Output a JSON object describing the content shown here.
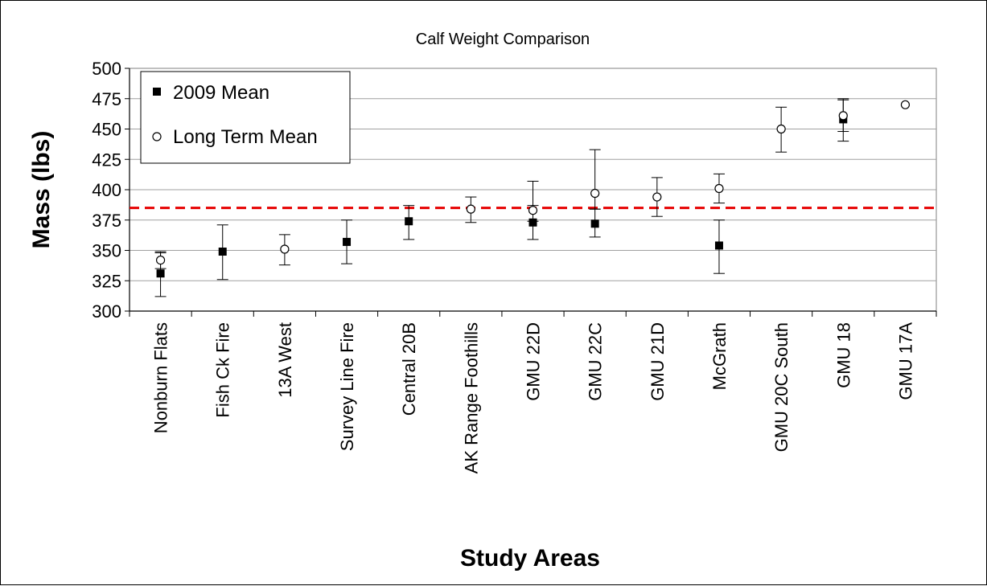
{
  "chart_data": {
    "type": "scatter",
    "title": "Calf Weight Comparison",
    "xlabel": "Study Areas",
    "ylabel": "Mass (lbs)",
    "ylim": [
      300,
      500
    ],
    "yticks": [
      300,
      325,
      350,
      375,
      400,
      425,
      450,
      475,
      500
    ],
    "grid": "horizontal",
    "legend_position": "top-left",
    "categories": [
      "Nonburn Flats",
      "Fish Ck Fire",
      "13A West",
      "Survey Line Fire",
      "Central 20B",
      "AK Range Foothills",
      "GMU 22D",
      "GMU 22C",
      "GMU 21D",
      "McGrath",
      "GMU 20C South",
      "GMU 18",
      "GMU 17A"
    ],
    "series": [
      {
        "name": "2009 Mean",
        "marker": "filled-square",
        "color": "#000000",
        "values": [
          331,
          349,
          null,
          357,
          374,
          null,
          373,
          372,
          null,
          354,
          null,
          458,
          null
        ],
        "error_low": [
          312,
          326,
          null,
          339,
          359,
          null,
          359,
          361,
          null,
          331,
          null,
          440,
          null
        ],
        "error_high": [
          349,
          371,
          null,
          375,
          387,
          null,
          387,
          384,
          null,
          375,
          null,
          474,
          null
        ]
      },
      {
        "name": "Long Term Mean",
        "marker": "open-circle",
        "color": "#000000",
        "values": [
          342,
          null,
          351,
          null,
          null,
          384,
          383,
          397,
          394,
          401,
          450,
          461,
          470
        ],
        "error_low": [
          335,
          null,
          338,
          null,
          null,
          373,
          374,
          384,
          378,
          389,
          431,
          448,
          null
        ],
        "error_high": [
          348,
          null,
          363,
          null,
          null,
          394,
          407,
          433,
          410,
          413,
          468,
          475,
          null
        ]
      }
    ],
    "reference_line": {
      "value": 385,
      "color": "#e60000",
      "style": "dashed"
    }
  }
}
